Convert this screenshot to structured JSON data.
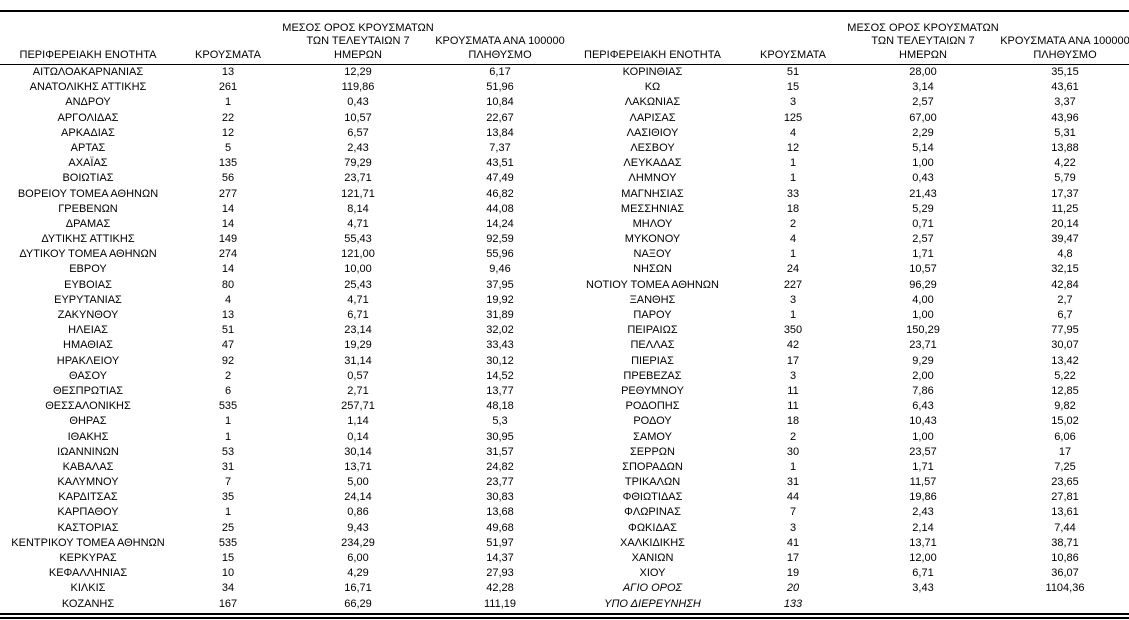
{
  "table": {
    "headers": {
      "region": "ΠΕΡΙΦΕΡΕΙΑΚΗ ΕΝΟΤΗΤΑ",
      "cases": "ΚΡΟΥΣΜΑΤΑ",
      "avg7_lines": [
        "ΜΕΣΟΣ ΟΡΟΣ ΚΡΟΥΣΜΑΤΩΝ",
        "ΤΩΝ ΤΕΛΕΥΤΑΙΩΝ 7",
        "ΗΜΕΡΩΝ"
      ],
      "per100k_lines": [
        "ΚΡΟΥΣΜΑΤΑ ΑΝΑ 100000",
        "ΠΛΗΘΥΣΜΟ"
      ]
    },
    "left_rows": [
      {
        "region": "ΑΙΤΩΛΟΑΚΑΡΝΑΝΙΑΣ",
        "cases": "13",
        "avg7": "12,29",
        "per100k": "6,17"
      },
      {
        "region": "ΑΝΑΤΟΛΙΚΗΣ ΑΤΤΙΚΗΣ",
        "cases": "261",
        "avg7": "119,86",
        "per100k": "51,96"
      },
      {
        "region": "ΑΝΔΡΟΥ",
        "cases": "1",
        "avg7": "0,43",
        "per100k": "10,84"
      },
      {
        "region": "ΑΡΓΟΛΙΔΑΣ",
        "cases": "22",
        "avg7": "10,57",
        "per100k": "22,67"
      },
      {
        "region": "ΑΡΚΑΔΙΑΣ",
        "cases": "12",
        "avg7": "6,57",
        "per100k": "13,84"
      },
      {
        "region": "ΑΡΤΑΣ",
        "cases": "5",
        "avg7": "2,43",
        "per100k": "7,37"
      },
      {
        "region": "ΑΧΑΪΑΣ",
        "cases": "135",
        "avg7": "79,29",
        "per100k": "43,51"
      },
      {
        "region": "ΒΟΙΩΤΙΑΣ",
        "cases": "56",
        "avg7": "23,71",
        "per100k": "47,49"
      },
      {
        "region": "ΒΟΡΕΙΟΥ ΤΟΜΕΑ ΑΘΗΝΩΝ",
        "cases": "277",
        "avg7": "121,71",
        "per100k": "46,82"
      },
      {
        "region": "ΓΡΕΒΕΝΩΝ",
        "cases": "14",
        "avg7": "8,14",
        "per100k": "44,08"
      },
      {
        "region": "ΔΡΑΜΑΣ",
        "cases": "14",
        "avg7": "4,71",
        "per100k": "14,24"
      },
      {
        "region": "ΔΥΤΙΚΗΣ ΑΤΤΙΚΗΣ",
        "cases": "149",
        "avg7": "55,43",
        "per100k": "92,59"
      },
      {
        "region": "ΔΥΤΙΚΟΥ ΤΟΜΕΑ ΑΘΗΝΩΝ",
        "cases": "274",
        "avg7": "121,00",
        "per100k": "55,96"
      },
      {
        "region": "ΕΒΡΟΥ",
        "cases": "14",
        "avg7": "10,00",
        "per100k": "9,46"
      },
      {
        "region": "ΕΥΒΟΙΑΣ",
        "cases": "80",
        "avg7": "25,43",
        "per100k": "37,95"
      },
      {
        "region": "ΕΥΡΥΤΑΝΙΑΣ",
        "cases": "4",
        "avg7": "4,71",
        "per100k": "19,92"
      },
      {
        "region": "ΖΑΚΥΝΘΟΥ",
        "cases": "13",
        "avg7": "6,71",
        "per100k": "31,89"
      },
      {
        "region": "ΗΛΕΙΑΣ",
        "cases": "51",
        "avg7": "23,14",
        "per100k": "32,02"
      },
      {
        "region": "ΗΜΑΘΙΑΣ",
        "cases": "47",
        "avg7": "19,29",
        "per100k": "33,43"
      },
      {
        "region": "ΗΡΑΚΛΕΙΟΥ",
        "cases": "92",
        "avg7": "31,14",
        "per100k": "30,12"
      },
      {
        "region": "ΘΑΣΟΥ",
        "cases": "2",
        "avg7": "0,57",
        "per100k": "14,52"
      },
      {
        "region": "ΘΕΣΠΡΩΤΙΑΣ",
        "cases": "6",
        "avg7": "2,71",
        "per100k": "13,77"
      },
      {
        "region": "ΘΕΣΣΑΛΟΝΙΚΗΣ",
        "cases": "535",
        "avg7": "257,71",
        "per100k": "48,18"
      },
      {
        "region": "ΘΗΡΑΣ",
        "cases": "1",
        "avg7": "1,14",
        "per100k": "5,3"
      },
      {
        "region": "ΙΘΑΚΗΣ",
        "cases": "1",
        "avg7": "0,14",
        "per100k": "30,95"
      },
      {
        "region": "ΙΩΑΝΝΙΝΩΝ",
        "cases": "53",
        "avg7": "30,14",
        "per100k": "31,57"
      },
      {
        "region": "ΚΑΒΑΛΑΣ",
        "cases": "31",
        "avg7": "13,71",
        "per100k": "24,82"
      },
      {
        "region": "ΚΑΛΥΜΝΟΥ",
        "cases": "7",
        "avg7": "5,00",
        "per100k": "23,77"
      },
      {
        "region": "ΚΑΡΔΙΤΣΑΣ",
        "cases": "35",
        "avg7": "24,14",
        "per100k": "30,83"
      },
      {
        "region": "ΚΑΡΠΑΘΟΥ",
        "cases": "1",
        "avg7": "0,86",
        "per100k": "13,68"
      },
      {
        "region": "ΚΑΣΤΟΡΙΑΣ",
        "cases": "25",
        "avg7": "9,43",
        "per100k": "49,68"
      },
      {
        "region": "ΚΕΝΤΡΙΚΟΥ ΤΟΜΕΑ ΑΘΗΝΩΝ",
        "cases": "535",
        "avg7": "234,29",
        "per100k": "51,97"
      },
      {
        "region": "ΚΕΡΚΥΡΑΣ",
        "cases": "15",
        "avg7": "6,00",
        "per100k": "14,37"
      },
      {
        "region": "ΚΕΦΑΛΛΗΝΙΑΣ",
        "cases": "10",
        "avg7": "4,29",
        "per100k": "27,93"
      },
      {
        "region": "ΚΙΛΚΙΣ",
        "cases": "34",
        "avg7": "16,71",
        "per100k": "42,28"
      },
      {
        "region": "ΚΟΖΑΝΗΣ",
        "cases": "167",
        "avg7": "66,29",
        "per100k": "111,19"
      }
    ],
    "right_rows": [
      {
        "region": "ΚΟΡΙΝΘΙΑΣ",
        "cases": "51",
        "avg7": "28,00",
        "per100k": "35,15"
      },
      {
        "region": "ΚΩ",
        "cases": "15",
        "avg7": "3,14",
        "per100k": "43,61"
      },
      {
        "region": "ΛΑΚΩΝΙΑΣ",
        "cases": "3",
        "avg7": "2,57",
        "per100k": "3,37"
      },
      {
        "region": "ΛΑΡΙΣΑΣ",
        "cases": "125",
        "avg7": "67,00",
        "per100k": "43,96"
      },
      {
        "region": "ΛΑΣΙΘΙΟΥ",
        "cases": "4",
        "avg7": "2,29",
        "per100k": "5,31"
      },
      {
        "region": "ΛΕΣΒΟΥ",
        "cases": "12",
        "avg7": "5,14",
        "per100k": "13,88"
      },
      {
        "region": "ΛΕΥΚΑΔΑΣ",
        "cases": "1",
        "avg7": "1,00",
        "per100k": "4,22"
      },
      {
        "region": "ΛΗΜΝΟΥ",
        "cases": "1",
        "avg7": "0,43",
        "per100k": "5,79"
      },
      {
        "region": "ΜΑΓΝΗΣΙΑΣ",
        "cases": "33",
        "avg7": "21,43",
        "per100k": "17,37"
      },
      {
        "region": "ΜΕΣΣΗΝΙΑΣ",
        "cases": "18",
        "avg7": "5,29",
        "per100k": "11,25"
      },
      {
        "region": "ΜΗΛΟΥ",
        "cases": "2",
        "avg7": "0,71",
        "per100k": "20,14"
      },
      {
        "region": "ΜΥΚΟΝΟΥ",
        "cases": "4",
        "avg7": "2,57",
        "per100k": "39,47"
      },
      {
        "region": "ΝΑΞΟΥ",
        "cases": "1",
        "avg7": "1,71",
        "per100k": "4,8"
      },
      {
        "region": "ΝΗΣΩΝ",
        "cases": "24",
        "avg7": "10,57",
        "per100k": "32,15"
      },
      {
        "region": "ΝΟΤΙΟΥ ΤΟΜΕΑ ΑΘΗΝΩΝ",
        "cases": "227",
        "avg7": "96,29",
        "per100k": "42,84"
      },
      {
        "region": "ΞΑΝΘΗΣ",
        "cases": "3",
        "avg7": "4,00",
        "per100k": "2,7"
      },
      {
        "region": "ΠΑΡΟΥ",
        "cases": "1",
        "avg7": "1,00",
        "per100k": "6,7"
      },
      {
        "region": "ΠΕΙΡΑΙΩΣ",
        "cases": "350",
        "avg7": "150,29",
        "per100k": "77,95"
      },
      {
        "region": "ΠΕΛΛΑΣ",
        "cases": "42",
        "avg7": "23,71",
        "per100k": "30,07"
      },
      {
        "region": "ΠΙΕΡΙΑΣ",
        "cases": "17",
        "avg7": "9,29",
        "per100k": "13,42"
      },
      {
        "region": "ΠΡΕΒΕΖΑΣ",
        "cases": "3",
        "avg7": "2,00",
        "per100k": "5,22"
      },
      {
        "region": "ΡΕΘΥΜΝΟΥ",
        "cases": "11",
        "avg7": "7,86",
        "per100k": "12,85"
      },
      {
        "region": "ΡΟΔΟΠΗΣ",
        "cases": "11",
        "avg7": "6,43",
        "per100k": "9,82"
      },
      {
        "region": "ΡΟΔΟΥ",
        "cases": "18",
        "avg7": "10,43",
        "per100k": "15,02"
      },
      {
        "region": "ΣΑΜΟΥ",
        "cases": "2",
        "avg7": "1,00",
        "per100k": "6,06"
      },
      {
        "region": "ΣΕΡΡΩΝ",
        "cases": "30",
        "avg7": "23,57",
        "per100k": "17"
      },
      {
        "region": "ΣΠΟΡΑΔΩΝ",
        "cases": "1",
        "avg7": "1,71",
        "per100k": "7,25"
      },
      {
        "region": "ΤΡΙΚΑΛΩΝ",
        "cases": "31",
        "avg7": "11,57",
        "per100k": "23,65"
      },
      {
        "region": "ΦΘΙΩΤΙΔΑΣ",
        "cases": "44",
        "avg7": "19,86",
        "per100k": "27,81"
      },
      {
        "region": "ΦΛΩΡΙΝΑΣ",
        "cases": "7",
        "avg7": "2,43",
        "per100k": "13,61"
      },
      {
        "region": "ΦΩΚΙΔΑΣ",
        "cases": "3",
        "avg7": "2,14",
        "per100k": "7,44"
      },
      {
        "region": "ΧΑΛΚΙΔΙΚΗΣ",
        "cases": "41",
        "avg7": "13,71",
        "per100k": "38,71"
      },
      {
        "region": "ΧΑΝΙΩΝ",
        "cases": "17",
        "avg7": "12,00",
        "per100k": "10,86"
      },
      {
        "region": "ΧΙΟΥ",
        "cases": "19",
        "avg7": "6,71",
        "per100k": "36,07"
      },
      {
        "region": "ΑΓΙΟ ΟΡΟΣ",
        "cases": "20",
        "avg7": "3,43",
        "per100k": "1104,36",
        "italic": true
      },
      {
        "region": "ΥΠΟ ΔΙΕΡΕΥΝΗΣΗ",
        "cases": "133",
        "avg7": "",
        "per100k": "",
        "italic": true
      }
    ]
  }
}
